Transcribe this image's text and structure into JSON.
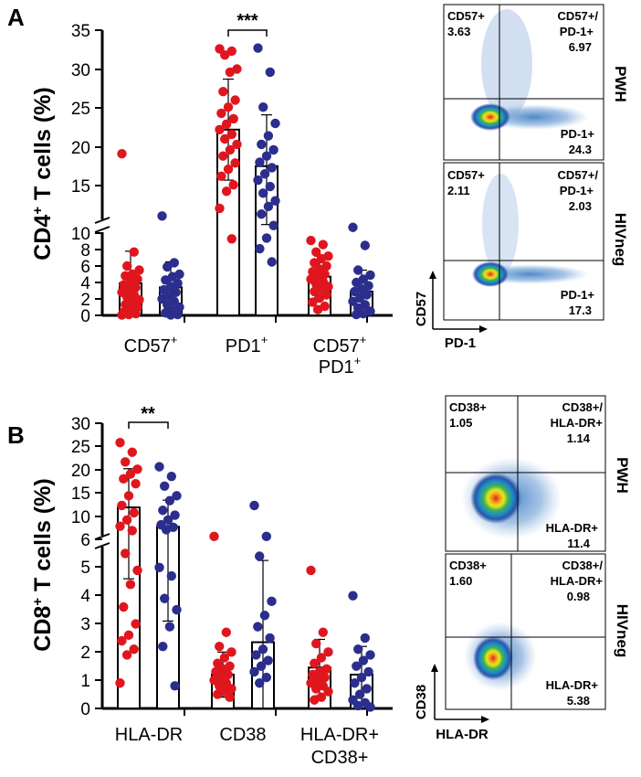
{
  "panels": [
    {
      "letter": "A",
      "ylabel_main": "CD4",
      "ylabel_sup": "+",
      "ylabel_rest": " T cells (%)",
      "upper_ticks": [
        "15",
        "20",
        "25",
        "30",
        "35"
      ],
      "lower_ticks": [
        "0",
        "2",
        "4",
        "6",
        "8",
        "10"
      ],
      "categories": [
        {
          "line1": "CD57",
          "sup1": "+",
          "line2": "",
          "sup2": ""
        },
        {
          "line1": "PD1",
          "sup1": "+",
          "line2": "",
          "sup2": ""
        },
        {
          "line1": "CD57",
          "sup1": "+",
          "line2": "PD1",
          "sup2": "+"
        }
      ],
      "significance": [
        {
          "label": "***"
        }
      ],
      "flow": [
        {
          "condition": "PWH",
          "quadrants": {
            "ul_name": "CD57+",
            "ul_value": "3.63",
            "ur_name1": "CD57+/",
            "ur_name2": "PD-1+",
            "ur_value": "6.97",
            "lr_name": "PD-1+",
            "lr_value": "24.3"
          }
        },
        {
          "condition": "HIVneg",
          "quadrants": {
            "ul_name": "CD57+",
            "ul_value": "2.11",
            "ur_name1": "CD57+/",
            "ur_name2": "PD-1+",
            "ur_value": "2.03",
            "lr_name": "PD-1+",
            "lr_value": "17.3"
          }
        }
      ],
      "flow_xlabel": "PD-1",
      "flow_ylabel": "CD57"
    },
    {
      "letter": "B",
      "ylabel_main": "CD8",
      "ylabel_sup": "+",
      "ylabel_rest": " T cells (%)",
      "upper_ticks": [
        "6",
        "10",
        "15",
        "20",
        "25",
        "30"
      ],
      "lower_ticks": [
        "0",
        "1",
        "2",
        "3",
        "4",
        "5",
        "6"
      ],
      "categories": [
        {
          "line1": "HLA-DR",
          "sup1": "",
          "line2": "",
          "sup2": ""
        },
        {
          "line1": "CD38",
          "sup1": "",
          "line2": "",
          "sup2": ""
        },
        {
          "line1": "HLA-DR+",
          "sup1": "",
          "line2": "CD38+",
          "sup2": ""
        }
      ],
      "significance": [
        {
          "label": "**"
        }
      ],
      "flow": [
        {
          "condition": "PWH",
          "quadrants": {
            "ul_name": "CD38+",
            "ul_value": "1.05",
            "ur_name1": "CD38+/",
            "ur_name2": "HLA-DR+",
            "ur_value": "1.14",
            "lr_name": "HLA-DR+",
            "lr_value": "11.4"
          }
        },
        {
          "condition": "HIVneg",
          "quadrants": {
            "ul_name": "CD38+",
            "ul_value": "1.60",
            "ur_name1": "CD38+/",
            "ur_name2": "HLA-DR+",
            "ur_value": "0.98",
            "lr_name": "HLA-DR+",
            "lr_value": "5.38"
          }
        }
      ],
      "flow_xlabel": "HLA-DR",
      "flow_ylabel": "CD38"
    }
  ],
  "colors": {
    "pwh": "#e0161e",
    "hivneg": "#2b2e8c",
    "axis": "#000000"
  },
  "chart_data": [
    {
      "type": "bar",
      "axis_break": {
        "upper": [
          10,
          35
        ],
        "lower": [
          0,
          10
        ]
      },
      "ylim": [
        0,
        35
      ],
      "categories": [
        "CD57+",
        "PD1+",
        "CD57+ PD1+"
      ],
      "series": [
        {
          "name": "PWH",
          "values": [
            3.9,
            22.2,
            4.7
          ],
          "sd": [
            3.9,
            6.5,
            2.5
          ],
          "points": [
            [
              19.1,
              7.7,
              6.0,
              5.5,
              5.0,
              4.8,
              4.4,
              4.0,
              3.7,
              3.4,
              3.1,
              2.8,
              2.5,
              2.2,
              1.9,
              1.6,
              1.3,
              1.0,
              0.7,
              0.4,
              0.2,
              0.1,
              0.05
            ],
            [
              32.6,
              32.3,
              31.8,
              30.0,
              29.6,
              27.1,
              26.0,
              25.1,
              24.3,
              23.6,
              22.9,
              22.2,
              21.6,
              21.0,
              20.3,
              19.6,
              18.8,
              17.9,
              17.1,
              16.2,
              15.1,
              14.4,
              12.6,
              9.3
            ],
            [
              9.1,
              8.6,
              7.7,
              7.2,
              6.9,
              6.4,
              6.0,
              5.6,
              5.3,
              5.0,
              4.7,
              4.4,
              4.1,
              3.8,
              3.5,
              3.2,
              2.9,
              2.5,
              2.1,
              1.6,
              1.1,
              0.7
            ]
          ]
        },
        {
          "name": "HIVneg",
          "values": [
            3.4,
            17.5,
            2.9
          ],
          "sd": [
            3.1,
            6.6,
            2.6
          ],
          "points": [
            [
              11.8,
              6.4,
              5.9,
              5.0,
              4.7,
              4.3,
              3.9,
              3.5,
              3.1,
              2.8,
              2.4,
              2.0,
              1.7,
              1.3,
              1.0,
              0.6,
              0.3,
              0.1,
              0.05
            ],
            [
              32.7,
              29.6,
              25.1,
              23.0,
              21.4,
              20.3,
              19.6,
              18.8,
              18.0,
              17.3,
              16.5,
              15.7,
              14.9,
              14.2,
              13.4,
              12.8,
              12.0,
              10.8,
              9.4,
              8.1,
              6.5
            ],
            [
              10.6,
              8.5,
              5.5,
              4.9,
              4.4,
              4.0,
              3.6,
              3.2,
              2.9,
              2.5,
              2.1,
              1.7,
              1.3,
              0.9,
              0.5,
              0.2,
              0.1
            ]
          ]
        }
      ],
      "significance": [
        {
          "category": "PD1+",
          "label": "***"
        }
      ]
    },
    {
      "type": "bar",
      "axis_break": {
        "upper": [
          6,
          30
        ],
        "lower": [
          0,
          6
        ]
      },
      "ylim": [
        0,
        30
      ],
      "categories": [
        "HLA-DR",
        "CD38",
        "HLA-DR+ CD38+"
      ],
      "series": [
        {
          "name": "PWH",
          "values": [
            12.6,
            1.2,
            1.45
          ],
          "sd": [
            8.0,
            0.8,
            1.0
          ],
          "points": [
            [
              26.0,
              24.0,
              22.0,
              20.5,
              19.5,
              18.5,
              17.5,
              15.0,
              13.0,
              11.5,
              10.0,
              8.7,
              7.8,
              5.5,
              4.9,
              4.4,
              3.6,
              3.0,
              2.6,
              2.4,
              2.1,
              1.9,
              0.9
            ],
            [
              6.6,
              2.7,
              2.2,
              2.0,
              1.8,
              1.6,
              1.5,
              1.4,
              1.3,
              1.2,
              1.1,
              1.0,
              0.9,
              0.8,
              0.7,
              0.6,
              0.5,
              0.4
            ],
            [
              4.9,
              2.7,
              2.3,
              2.0,
              1.8,
              1.6,
              1.4,
              1.3,
              1.2,
              1.1,
              1.0,
              0.9,
              0.8,
              0.7,
              0.6,
              0.4,
              0.3
            ]
          ]
        },
        {
          "name": "HIVneg",
          "values": [
            8.6,
            2.35,
            1.2
          ],
          "sd": [
            5.5,
            2.9,
            1.0
          ],
          "points": [
            [
              21.0,
              19.0,
              17.0,
              15.0,
              14.0,
              12.0,
              11.0,
              10.0,
              9.0,
              8.5,
              8.0,
              5.0,
              4.7,
              3.9,
              3.5,
              2.9,
              2.2,
              0.8
            ],
            [
              13.0,
              6.6,
              5.4,
              3.8,
              3.3,
              2.9,
              2.5,
              2.1,
              1.9,
              1.7,
              1.5,
              1.3,
              1.1,
              0.9
            ],
            [
              4.0,
              2.5,
              2.1,
              1.9,
              1.7,
              1.5,
              1.3,
              1.1,
              0.9,
              0.7,
              0.5,
              0.3,
              0.2,
              0.1,
              0.05
            ]
          ]
        }
      ],
      "significance": [
        {
          "category": "HLA-DR",
          "label": "**"
        }
      ]
    }
  ]
}
